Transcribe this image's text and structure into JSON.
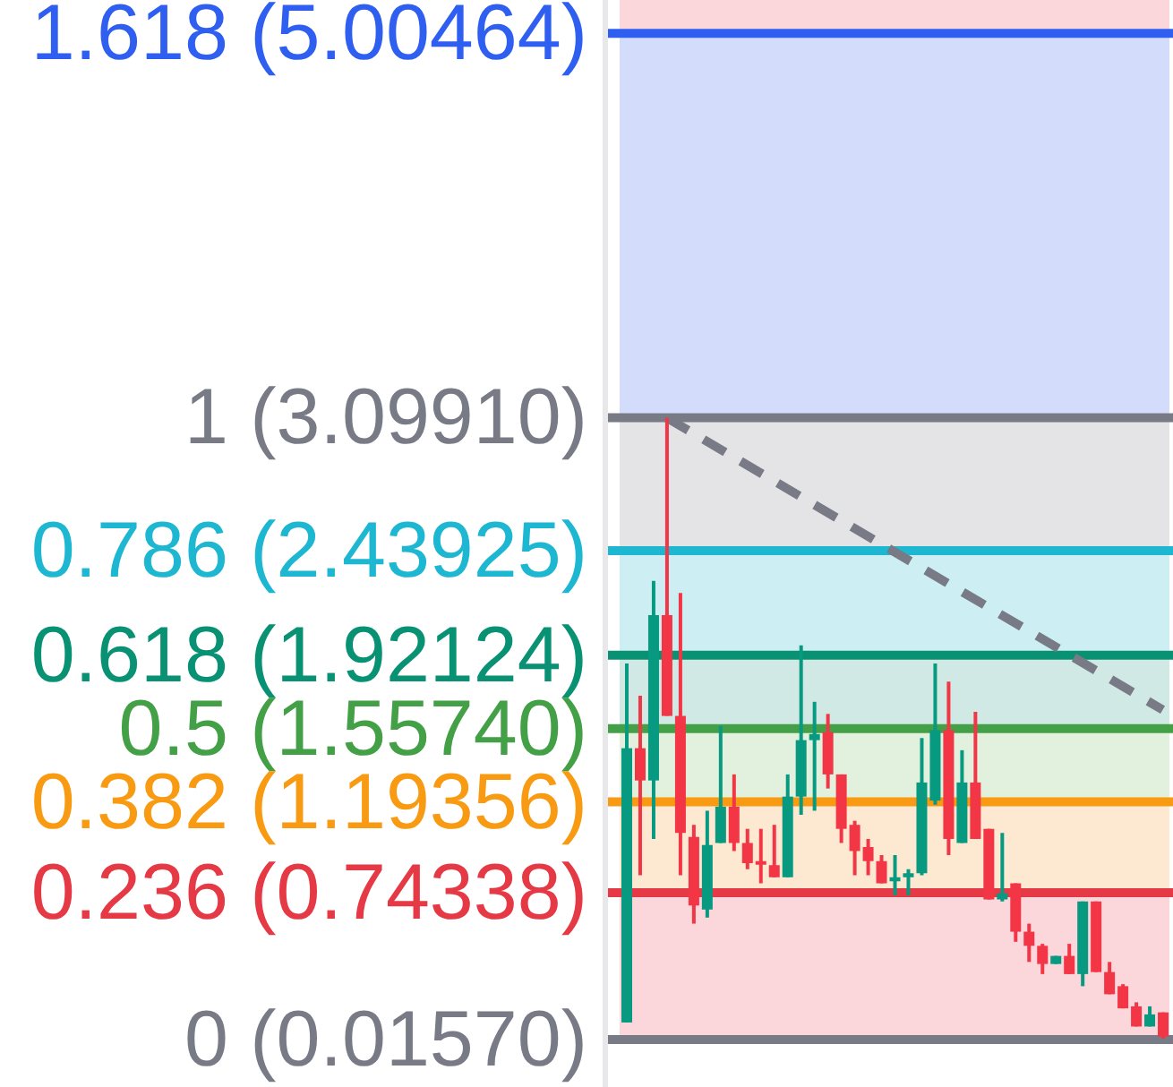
{
  "chart_data": {
    "type": "candlestick",
    "categories": [
      null,
      null,
      null,
      null,
      null,
      null,
      null,
      null,
      null,
      null,
      null,
      null,
      null,
      null,
      null,
      null,
      null,
      null,
      null,
      null,
      null,
      null,
      null,
      null,
      null,
      null,
      null,
      null,
      null,
      null,
      null,
      null,
      null,
      null,
      null,
      null,
      null,
      null,
      null,
      null,
      null
    ],
    "ohlc": [
      [
        0.1,
        1.88,
        0.1,
        1.46
      ],
      [
        1.46,
        1.72,
        0.83,
        1.3
      ],
      [
        1.3,
        2.29,
        1.01,
        2.12
      ],
      [
        2.12,
        3.099,
        1.62,
        1.62
      ],
      [
        1.62,
        2.23,
        0.83,
        1.04
      ],
      [
        1.02,
        1.08,
        0.59,
        0.68
      ],
      [
        0.66,
        1.15,
        0.62,
        0.98
      ],
      [
        0.99,
        1.57,
        0.99,
        1.17
      ],
      [
        1.17,
        1.33,
        0.95,
        0.99
      ],
      [
        0.99,
        1.06,
        0.86,
        0.89
      ],
      [
        0.9,
        1.06,
        0.79,
        0.89
      ],
      [
        0.88,
        1.08,
        0.82,
        0.82
      ],
      [
        0.82,
        1.33,
        0.82,
        1.22
      ],
      [
        1.22,
        1.97,
        1.13,
        1.5
      ],
      [
        1.5,
        1.69,
        1.15,
        1.53
      ],
      [
        1.54,
        1.63,
        1.26,
        1.33
      ],
      [
        1.33,
        1.33,
        0.99,
        1.06
      ],
      [
        1.08,
        1.1,
        0.83,
        0.95
      ],
      [
        0.97,
        1.01,
        0.83,
        0.9
      ],
      [
        0.9,
        0.93,
        0.79,
        0.79
      ],
      [
        0.8,
        0.93,
        0.73,
        0.82
      ],
      [
        0.82,
        0.86,
        0.73,
        0.84
      ],
      [
        0.84,
        1.51,
        0.83,
        1.29
      ],
      [
        1.2,
        1.88,
        1.18,
        1.55
      ],
      [
        1.55,
        1.79,
        0.93,
        1.01
      ],
      [
        0.99,
        1.45,
        0.99,
        1.29
      ],
      [
        1.29,
        1.64,
        1.01,
        1.01
      ],
      [
        1.06,
        1.06,
        0.71,
        0.71
      ],
      [
        0.71,
        1.04,
        0.7,
        0.74
      ],
      [
        0.79,
        0.79,
        0.5,
        0.55
      ],
      [
        0.55,
        0.59,
        0.4,
        0.48
      ],
      [
        0.48,
        0.49,
        0.34,
        0.39
      ],
      [
        0.39,
        0.43,
        0.39,
        0.43
      ],
      [
        0.43,
        0.49,
        0.34,
        0.34
      ],
      [
        0.34,
        0.7,
        0.28,
        0.7
      ],
      [
        0.7,
        0.7,
        0.35,
        0.35
      ],
      [
        0.35,
        0.4,
        0.24,
        0.24
      ],
      [
        0.28,
        0.29,
        0.17,
        0.17
      ],
      [
        0.18,
        0.2,
        0.08,
        0.08
      ],
      [
        0.08,
        0.18,
        0.08,
        0.14
      ],
      [
        0.15,
        0.15,
        0.02,
        0.03
      ]
    ],
    "colors": [
      "#089981",
      "#f23645",
      "#089981",
      "#f23645",
      "#f23645",
      "#f23645",
      "#089981",
      "#089981",
      "#f23645",
      "#f23645",
      "#f23645",
      "#f23645",
      "#089981",
      "#089981",
      "#089981",
      "#f23645",
      "#f23645",
      "#f23645",
      "#f23645",
      "#f23645",
      "#089981",
      "#089981",
      "#089981",
      "#089981",
      "#f23645",
      "#089981",
      "#f23645",
      "#f23645",
      "#089981",
      "#f23645",
      "#f23645",
      "#f23645",
      "#089981",
      "#f23645",
      "#089981",
      "#f23645",
      "#f23645",
      "#f23645",
      "#f23645",
      "#089981",
      "#f23645"
    ],
    "ylim": [
      -0.22,
      5.17
    ],
    "yticks": [
      {
        "value": 5.00464,
        "label": "(5.00464)"
      },
      {
        "value": 3.0991,
        "label": "(3.09910)"
      },
      {
        "value": 2.43925,
        "label": "(2.43925)"
      },
      {
        "value": 1.92124,
        "label": "(1.92124)"
      },
      {
        "value": 1.5574,
        "label": "(1.55740)"
      },
      {
        "value": 1.19356,
        "label": "(1.19356)"
      },
      {
        "value": 0.74338,
        "label": "(0.74338)"
      },
      {
        "value": 0.0157,
        "label": "(0.01570)"
      }
    ],
    "annotations": [
      "1.618",
      "1",
      "0.786",
      "0.618",
      "0.5",
      "0.382",
      "0.236",
      "0"
    ],
    "series": [
      {
        "type": "line",
        "values": [
          null,
          null,
          null,
          3.099,
          null,
          null,
          null,
          null,
          null,
          null,
          null,
          null,
          null,
          null,
          null,
          null,
          null,
          null,
          null,
          null,
          null,
          null,
          null,
          null,
          null,
          null,
          null,
          null,
          null,
          null,
          null,
          null,
          null,
          null,
          null,
          null,
          null,
          null,
          null,
          null,
          1.65
        ],
        "color": "#787b86",
        "line_style": "dashed"
      }
    ],
    "tick_labels": "y",
    "bands": [
      {
        "axis": "y",
        "from": 5.00464,
        "to": 5.17,
        "color": "#fbd7db"
      },
      {
        "axis": "y",
        "from": 3.0991,
        "to": 5.00464,
        "color": "#d3dcfb"
      },
      {
        "axis": "y",
        "from": 2.43925,
        "to": 3.0991,
        "color": "#e4e4e6"
      },
      {
        "axis": "y",
        "from": 1.92124,
        "to": 2.43925,
        "color": "#cdeff3"
      },
      {
        "axis": "y",
        "from": 1.5574,
        "to": 1.92124,
        "color": "#d0e9e4"
      },
      {
        "axis": "y",
        "from": 1.19356,
        "to": 1.5574,
        "color": "#e2f1de"
      },
      {
        "axis": "y",
        "from": 0.74338,
        "to": 1.19356,
        "color": "#fde9d2"
      },
      {
        "axis": "y",
        "from": 0.0157,
        "to": 0.74338,
        "color": "#fbd7db"
      }
    ],
    "ref_lines": [
      {
        "axis": "y",
        "value": 5.00464,
        "color": "#2f5ff0"
      },
      {
        "axis": "y",
        "value": 3.0991,
        "color": "#787b86"
      },
      {
        "axis": "y",
        "value": 2.43925,
        "color": "#1eb7d2"
      },
      {
        "axis": "y",
        "value": 1.92124,
        "color": "#089173"
      },
      {
        "axis": "y",
        "value": 1.5574,
        "color": "#43a047"
      },
      {
        "axis": "y",
        "value": 1.19356,
        "color": "#f89a12"
      },
      {
        "axis": "y",
        "value": 0.74338,
        "color": "#e53945"
      },
      {
        "axis": "y",
        "value": 0.0157,
        "color": "#787b86"
      }
    ]
  }
}
